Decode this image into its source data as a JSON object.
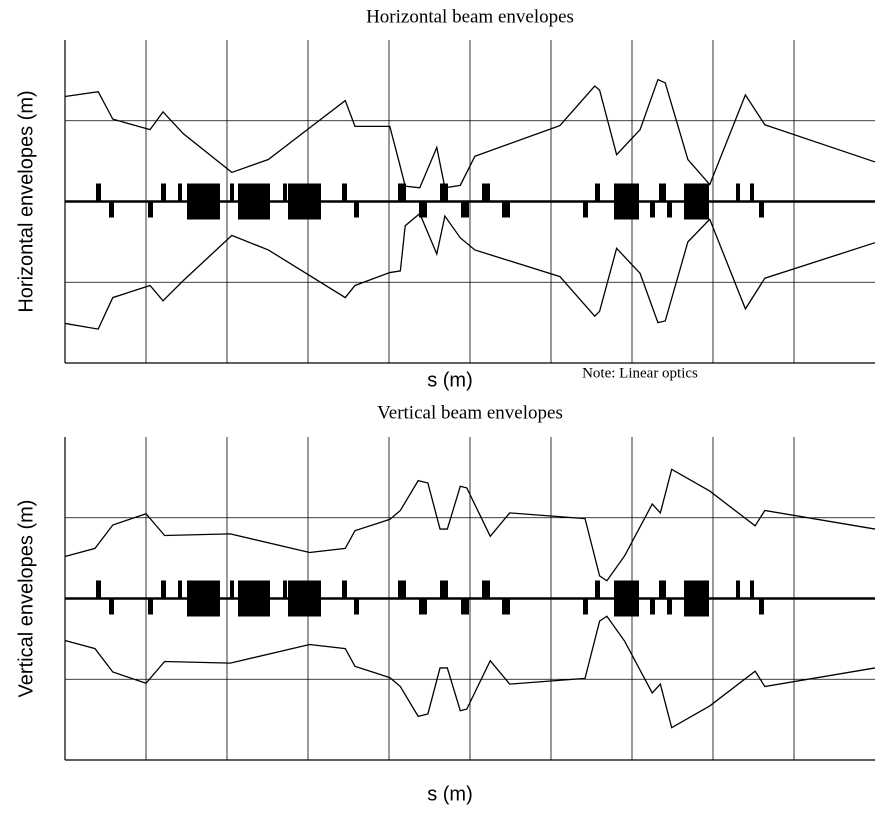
{
  "chart_data": [
    {
      "type": "line",
      "title": "Horizontal beam envelopes",
      "x_label": "s (m)",
      "y_label": "Horizontal envelopes (m)",
      "annotation": "Note: Linear optics",
      "xlim": [
        0,
        10
      ],
      "ylim": [
        -2,
        2
      ],
      "xticks": [
        1,
        2,
        3,
        4,
        5,
        6,
        7,
        8,
        9
      ],
      "yticks": [
        -1,
        0,
        1
      ],
      "grid": true,
      "series": [
        {
          "color": "#000000",
          "x": [
            0,
            0.41,
            0.59,
            1.05,
            1.21,
            1.46,
            2.06,
            2.51,
            3.46,
            3.58,
            4.01,
            4.14,
            4.2,
            4.38,
            4.59,
            4.69,
            4.88,
            5.06,
            6.11,
            6.54,
            6.6,
            6.81,
            7.1,
            7.32,
            7.41,
            7.69,
            7.96,
            8.4,
            8.64,
            10
          ],
          "values": [
            1.3,
            1.36,
            1.02,
            0.89,
            1.11,
            0.84,
            0.36,
            0.52,
            1.25,
            0.93,
            0.93,
            0.43,
            0.19,
            0.17,
            0.67,
            0.17,
            0.2,
            0.56,
            0.94,
            1.43,
            1.38,
            0.58,
            0.89,
            1.51,
            1.47,
            0.52,
            0.21,
            1.32,
            0.95,
            0.49
          ]
        },
        {
          "color": "#000000",
          "x": [
            0,
            0.41,
            0.59,
            1.05,
            1.21,
            1.46,
            2.06,
            2.51,
            3.46,
            3.58,
            4.01,
            4.14,
            4.2,
            4.38,
            4.59,
            4.69,
            4.88,
            5.06,
            6.11,
            6.54,
            6.6,
            6.81,
            7.1,
            7.32,
            7.41,
            7.69,
            7.96,
            8.4,
            8.64,
            10
          ],
          "values": [
            -1.51,
            -1.58,
            -1.19,
            -1.04,
            -1.23,
            -0.98,
            -0.42,
            -0.6,
            -1.19,
            -1.04,
            -0.88,
            -0.86,
            -0.3,
            -0.15,
            -0.65,
            -0.18,
            -0.45,
            -0.6,
            -0.93,
            -1.42,
            -1.36,
            -0.58,
            -0.89,
            -1.5,
            -1.48,
            -0.5,
            -0.22,
            -1.33,
            -0.95,
            -0.51
          ]
        }
      ]
    },
    {
      "type": "line",
      "title": "Vertical beam envelopes",
      "x_label": "s (m)",
      "y_label": "Vertical envelopes (m)",
      "xlim": [
        0,
        10
      ],
      "ylim": [
        -2,
        2
      ],
      "xticks": [
        1,
        2,
        3,
        4,
        5,
        6,
        7,
        8,
        9
      ],
      "yticks": [
        -1,
        0,
        1
      ],
      "grid": true,
      "series": [
        {
          "color": "#000000",
          "x": [
            0,
            0.37,
            0.59,
            1,
            1.23,
            2.04,
            3.02,
            3.46,
            3.58,
            4.01,
            4.14,
            4.36,
            4.48,
            4.63,
            4.72,
            4.88,
            4.96,
            5.25,
            5.49,
            6.42,
            6.6,
            6.69,
            6.91,
            7.25,
            7.35,
            7.49,
            7.96,
            8.52,
            8.64,
            10
          ],
          "values": [
            0.52,
            0.62,
            0.91,
            1.05,
            0.78,
            0.8,
            0.57,
            0.62,
            0.84,
            0.98,
            1.09,
            1.46,
            1.43,
            0.86,
            0.86,
            1.39,
            1.37,
            0.77,
            1.06,
            0.99,
            0.28,
            0.22,
            0.53,
            1.17,
            1.06,
            1.6,
            1.33,
            0.9,
            1.09,
            0.86
          ]
        },
        {
          "color": "#000000",
          "x": [
            0,
            0.37,
            0.59,
            1,
            1.23,
            2.04,
            3.02,
            3.46,
            3.58,
            4.01,
            4.14,
            4.36,
            4.48,
            4.63,
            4.72,
            4.88,
            4.96,
            5.25,
            5.49,
            6.42,
            6.6,
            6.69,
            6.91,
            7.25,
            7.35,
            7.49,
            7.96,
            8.52,
            8.64,
            10
          ],
          "values": [
            -0.52,
            -0.62,
            -0.91,
            -1.05,
            -0.78,
            -0.8,
            -0.57,
            -0.62,
            -0.84,
            -0.98,
            -1.09,
            -1.46,
            -1.43,
            -0.86,
            -0.86,
            -1.39,
            -1.37,
            -0.77,
            -1.06,
            -0.99,
            -0.28,
            -0.22,
            -0.53,
            -1.17,
            -1.06,
            -1.6,
            -1.33,
            -0.9,
            -1.09,
            -0.86
          ]
        }
      ]
    }
  ]
}
